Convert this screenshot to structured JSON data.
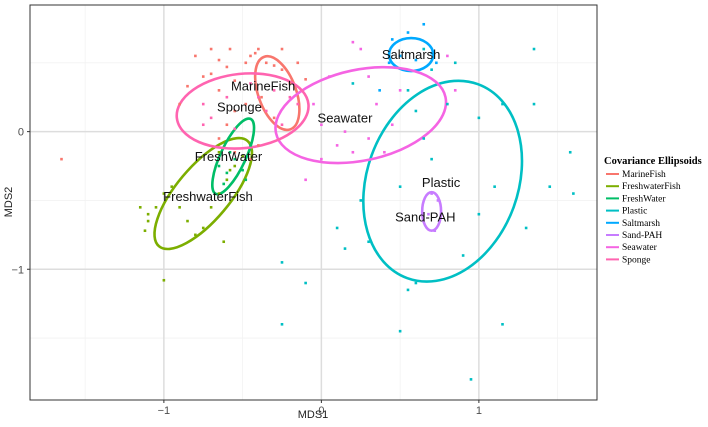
{
  "chart_data": {
    "type": "scatter",
    "xlabel": "MDS1",
    "ylabel": "MDS2",
    "xlim": [
      -1.85,
      1.75
    ],
    "ylim": [
      -1.95,
      0.92
    ],
    "x_ticks": [
      -1,
      0,
      1
    ],
    "y_ticks": [
      -1,
      0
    ],
    "x_tick_labels": [
      "−1",
      "0",
      "1"
    ],
    "y_tick_labels": [
      "−1",
      "0"
    ],
    "grid": true,
    "legend": {
      "title": "Covariance Ellipsoids",
      "placement": "right"
    },
    "series": [
      {
        "name": "MarineFish",
        "color": "#F8766D",
        "label": "MarineFish",
        "label_pos": [
          -0.37,
          0.33
        ],
        "ellipse": {
          "cx": -0.28,
          "cy": 0.28,
          "rx": 0.12,
          "ry": 0.28,
          "angle": -20
        },
        "points": [
          [
            -0.7,
            0.6
          ],
          [
            -0.65,
            0.52
          ],
          [
            -0.6,
            0.47
          ],
          [
            -0.55,
            0.37
          ],
          [
            -0.45,
            0.55
          ],
          [
            -0.42,
            0.57
          ],
          [
            -0.4,
            0.6
          ],
          [
            -0.35,
            0.5
          ],
          [
            -0.3,
            0.48
          ],
          [
            -0.25,
            0.45
          ],
          [
            -0.2,
            0.35
          ],
          [
            -0.15,
            0.5
          ],
          [
            -0.7,
            0.42
          ],
          [
            -0.65,
            0.3
          ],
          [
            -0.75,
            0.4
          ],
          [
            -0.85,
            0.33
          ],
          [
            -0.9,
            0.2
          ],
          [
            -0.8,
            0.55
          ],
          [
            -0.55,
            0.15
          ],
          [
            -0.48,
            0.2
          ],
          [
            -0.38,
            0.25
          ],
          [
            -0.3,
            0.1
          ],
          [
            -0.6,
            0.05
          ],
          [
            -0.65,
            -0.05
          ],
          [
            -0.55,
            -0.15
          ],
          [
            -1.65,
            -0.2
          ],
          [
            -0.45,
            -0.2
          ],
          [
            -0.4,
            -0.1
          ],
          [
            -0.25,
            0.6
          ],
          [
            -0.1,
            0.38
          ],
          [
            -0.48,
            0.5
          ],
          [
            -0.58,
            0.6
          ]
        ]
      },
      {
        "name": "FreshwaterFish",
        "color": "#7CAE00",
        "label": "FreshwaterFish",
        "label_pos": [
          -0.72,
          -0.47
        ],
        "ellipse": {
          "cx": -0.75,
          "cy": -0.45,
          "rx": 0.17,
          "ry": 0.5,
          "angle": 40
        },
        "points": [
          [
            -0.95,
            -0.4
          ],
          [
            -1.0,
            -0.45
          ],
          [
            -1.05,
            -0.55
          ],
          [
            -0.9,
            -0.55
          ],
          [
            -0.85,
            -0.65
          ],
          [
            -0.75,
            -0.7
          ],
          [
            -0.7,
            -0.55
          ],
          [
            -0.65,
            -0.45
          ],
          [
            -0.6,
            -0.35
          ],
          [
            -0.55,
            -0.25
          ],
          [
            -0.65,
            -0.15
          ],
          [
            -1.1,
            -0.6
          ],
          [
            -1.15,
            -0.55
          ],
          [
            -1.1,
            -0.65
          ],
          [
            -1.12,
            -0.72
          ],
          [
            -0.8,
            -0.75
          ],
          [
            -0.62,
            -0.8
          ],
          [
            -0.5,
            -0.18
          ],
          [
            -1.0,
            -1.08
          ],
          [
            -0.58,
            -0.28
          ]
        ]
      },
      {
        "name": "FreshWater",
        "color": "#00BE67",
        "label": "FreshWater",
        "label_pos": [
          -0.59,
          -0.18
        ],
        "ellipse": {
          "cx": -0.56,
          "cy": -0.18,
          "rx": 0.08,
          "ry": 0.3,
          "angle": 25
        },
        "points": [
          [
            -0.65,
            -0.25
          ],
          [
            -0.6,
            -0.3
          ],
          [
            -0.55,
            -0.2
          ],
          [
            -0.5,
            -0.28
          ],
          [
            -0.45,
            -0.1
          ],
          [
            -0.58,
            -0.15
          ],
          [
            -0.48,
            -0.35
          ],
          [
            -0.62,
            -0.38
          ]
        ]
      },
      {
        "name": "Plastic",
        "color": "#00BFC4",
        "label": "Plastic",
        "label_pos": [
          0.76,
          -0.37
        ],
        "ellipse": {
          "cx": 0.77,
          "cy": -0.36,
          "rx": 0.48,
          "ry": 0.75,
          "angle": 20
        },
        "points": [
          [
            0.55,
            0.3
          ],
          [
            0.6,
            0.15
          ],
          [
            0.8,
            0.2
          ],
          [
            1.0,
            0.1
          ],
          [
            1.15,
            0.2
          ],
          [
            1.35,
            0.2
          ],
          [
            1.35,
            0.6
          ],
          [
            0.65,
            -0.05
          ],
          [
            0.7,
            -0.2
          ],
          [
            0.5,
            -0.4
          ],
          [
            0.25,
            -0.5
          ],
          [
            0.3,
            -0.8
          ],
          [
            0.15,
            -0.85
          ],
          [
            0.1,
            -0.7
          ],
          [
            1.1,
            -0.4
          ],
          [
            1.0,
            -0.6
          ],
          [
            1.45,
            -0.4
          ],
          [
            1.6,
            -0.45
          ],
          [
            1.58,
            -0.15
          ],
          [
            1.3,
            -0.7
          ],
          [
            0.9,
            -0.9
          ],
          [
            0.6,
            -1.1
          ],
          [
            0.55,
            -1.15
          ],
          [
            0.5,
            -1.45
          ],
          [
            1.15,
            -1.4
          ],
          [
            0.95,
            -1.8
          ],
          [
            -0.25,
            -0.95
          ],
          [
            -0.1,
            -1.1
          ],
          [
            -0.25,
            -1.4
          ],
          [
            0.85,
            0.5
          ],
          [
            0.7,
            0.45
          ],
          [
            0.65,
            0.6
          ],
          [
            0.2,
            0.35
          ]
        ]
      },
      {
        "name": "Saltmarsh",
        "color": "#00A9FF",
        "label": "Saltmarsh",
        "label_pos": [
          0.57,
          0.56
        ],
        "ellipse": {
          "cx": 0.57,
          "cy": 0.56,
          "rx": 0.14,
          "ry": 0.12,
          "angle": 0
        },
        "points": [
          [
            0.45,
            0.67
          ],
          [
            0.55,
            0.72
          ],
          [
            0.65,
            0.78
          ],
          [
            0.5,
            0.55
          ],
          [
            0.6,
            0.52
          ],
          [
            0.7,
            0.57
          ],
          [
            0.43,
            0.5
          ],
          [
            0.37,
            0.3
          ],
          [
            0.73,
            0.5
          ]
        ]
      },
      {
        "name": "Sand-PAH",
        "color": "#C77CFF",
        "label": "Sand-PAH",
        "label_pos": [
          0.66,
          -0.62
        ],
        "ellipse": {
          "cx": 0.7,
          "cy": -0.58,
          "rx": 0.06,
          "ry": 0.14,
          "angle": 0
        },
        "points": [
          [
            0.7,
            -0.45
          ],
          [
            0.68,
            -0.6
          ],
          [
            0.72,
            -0.72
          ],
          [
            0.74,
            -0.5
          ]
        ]
      },
      {
        "name": "Seawater",
        "color": "#F564E3",
        "label": "Seawater",
        "label_pos": [
          0.15,
          0.1
        ],
        "ellipse": {
          "cx": 0.25,
          "cy": 0.12,
          "rx": 0.55,
          "ry": 0.33,
          "angle": -12
        },
        "points": [
          [
            0.2,
            0.65
          ],
          [
            0.25,
            0.6
          ],
          [
            0.05,
            0.4
          ],
          [
            0.3,
            0.4
          ],
          [
            0.35,
            0.2
          ],
          [
            0.45,
            0.05
          ],
          [
            0.2,
            -0.15
          ],
          [
            0.4,
            -0.15
          ],
          [
            0.3,
            -0.05
          ],
          [
            0.1,
            -0.1
          ],
          [
            0.0,
            0.05
          ],
          [
            0.5,
            0.3
          ],
          [
            0.8,
            0.55
          ],
          [
            0.85,
            0.3
          ],
          [
            -0.1,
            -0.35
          ],
          [
            0.0,
            -0.2
          ],
          [
            -0.05,
            0.2
          ],
          [
            0.15,
            0.0
          ]
        ]
      },
      {
        "name": "Sponge",
        "color": "#FF64B0",
        "label": "Sponge",
        "label_pos": [
          -0.52,
          0.18
        ],
        "ellipse": {
          "cx": -0.5,
          "cy": 0.15,
          "rx": 0.42,
          "ry": 0.27,
          "angle": -6
        },
        "points": [
          [
            -0.75,
            0.2
          ],
          [
            -0.6,
            0.25
          ],
          [
            -0.4,
            0.25
          ],
          [
            -0.35,
            0.15
          ],
          [
            -0.3,
            0.3
          ],
          [
            -0.2,
            0.25
          ],
          [
            -0.75,
            0.05
          ],
          [
            -0.55,
            0.02
          ],
          [
            -0.25,
            0.05
          ],
          [
            -0.45,
            0.35
          ],
          [
            -0.7,
            0.1
          ],
          [
            -0.15,
            0.2
          ]
        ]
      }
    ]
  }
}
